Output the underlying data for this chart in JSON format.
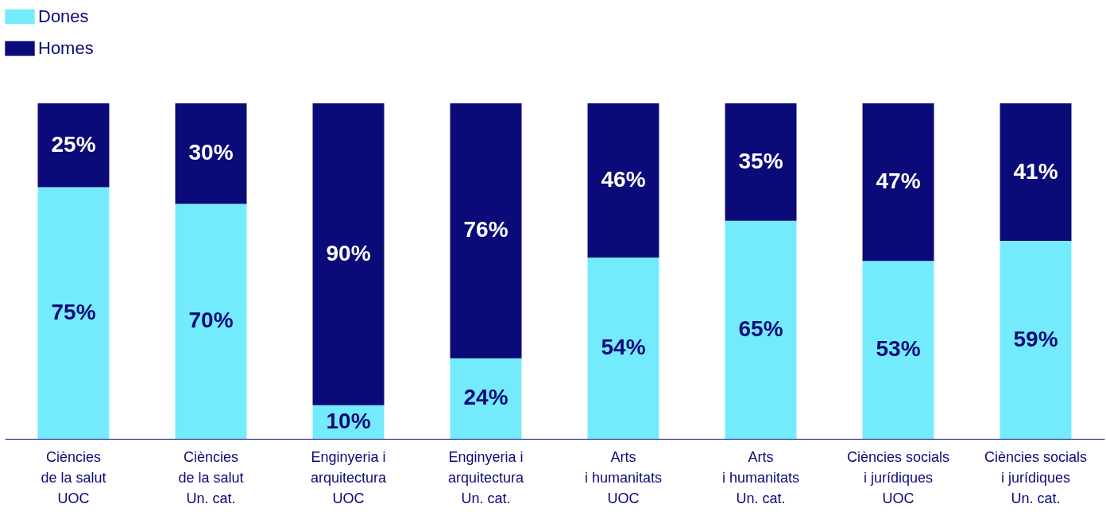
{
  "chart_data": {
    "type": "bar",
    "stacked": true,
    "legend": "top left",
    "grid": false,
    "categories": [
      "Ciències\nde la salut\n\nUOC",
      "Ciències\nde la salut\n\nUn. cat.",
      "Enginyeria i\narquitectura\n\nUOC",
      "Enginyeria i\narquitectura\n\nUn. cat.",
      "Arts\ni humanitats\n\nUOC",
      "Arts\ni humanitats\n\nUn. cat.",
      "Ciències socials\ni jurídiques\n\nUOC",
      "Ciències socials\ni jurídiques\n\nUn. cat."
    ],
    "series": [
      {
        "name": "Dones",
        "color": "#74ebfc",
        "values": [
          75,
          70,
          10,
          24,
          54,
          65,
          53,
          59
        ],
        "value_labels": [
          "75%",
          "70%",
          "10%",
          "24%",
          "54%",
          "65%",
          "53%",
          "59%"
        ]
      },
      {
        "name": "Homes",
        "color": "#0a0a78",
        "values": [
          25,
          30,
          90,
          76,
          46,
          35,
          47,
          41
        ],
        "value_labels": [
          "25%",
          "30%",
          "90%",
          "76%",
          "46%",
          "35%",
          "47%",
          "41%"
        ]
      }
    ]
  }
}
